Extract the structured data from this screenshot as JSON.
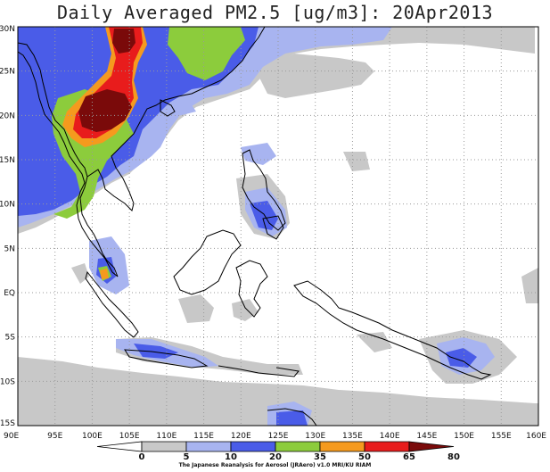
{
  "title": "Daily Averaged PM2.5 [ug/m3]: 20Apr2013",
  "credit": "The Japanese Reanalysis for Aerosol (JRAero) v1.0 MRI/KU RIAM",
  "lon_labels": [
    "90E",
    "95E",
    "100E",
    "105E",
    "110E",
    "115E",
    "120E",
    "125E",
    "130E",
    "135E",
    "140E",
    "145E",
    "150E",
    "155E",
    "160E"
  ],
  "lat_labels": [
    "30N",
    "25N",
    "20N",
    "15N",
    "10N",
    "5N",
    "EQ",
    "5S",
    "10S",
    "15S"
  ],
  "colorbar": {
    "levels": [
      "0",
      "5",
      "10",
      "20",
      "35",
      "50",
      "65",
      "80"
    ],
    "colors": [
      "#ffffff",
      "#c8c8c8",
      "#a8b4f0",
      "#4a5ce8",
      "#8ccc3c",
      "#f59a1e",
      "#e81c1c",
      "#7a0a0a"
    ]
  }
}
